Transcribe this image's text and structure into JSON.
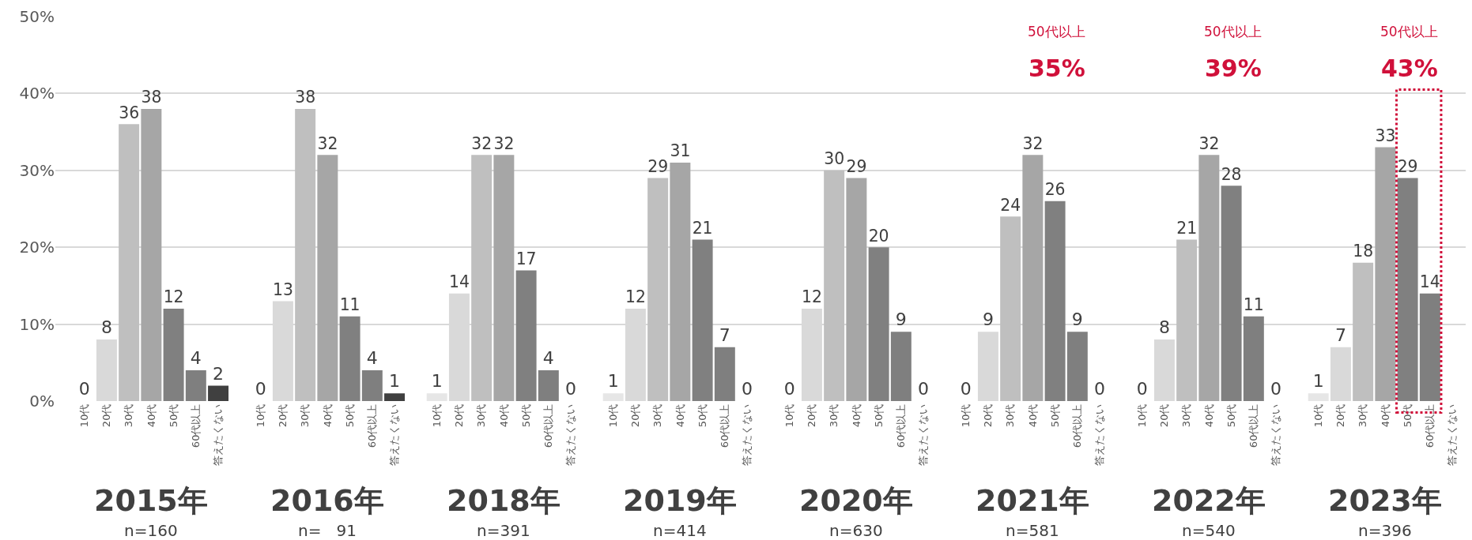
{
  "chart_data": [
    {
      "type": "bar",
      "title": "2015年",
      "subtitle": "n=160",
      "categories": [
        "10代",
        "20代",
        "30代",
        "40代",
        "50代",
        "60代以上",
        "答えたくない"
      ],
      "values": [
        0,
        8,
        36,
        38,
        12,
        4,
        2
      ],
      "colors": [
        "#e6e6e6",
        "#d9d9d9",
        "#bfbfbf",
        "#a6a6a6",
        "#808080",
        "#7f7f7f",
        "#404040"
      ],
      "data_labels": true,
      "ylim": [
        0,
        50
      ],
      "yticks": [
        {
          "value": 0,
          "label": "0%"
        },
        {
          "value": 10,
          "label": "10%"
        },
        {
          "value": 20,
          "label": "20%"
        },
        {
          "value": 30,
          "label": "30%"
        },
        {
          "value": 40,
          "label": "40%"
        },
        {
          "value": 50,
          "label": "50%"
        }
      ],
      "grid": "y"
    },
    {
      "type": "bar",
      "title": "2016年",
      "subtitle": "n=   91",
      "categories": [
        "10代",
        "20代",
        "30代",
        "40代",
        "50代",
        "60代以上",
        "答えたくない"
      ],
      "values": [
        0,
        13,
        38,
        32,
        11,
        4,
        1
      ],
      "colors": [
        "#e6e6e6",
        "#d9d9d9",
        "#bfbfbf",
        "#a6a6a6",
        "#808080",
        "#7f7f7f",
        "#404040"
      ],
      "data_labels": true,
      "ylim": [
        0,
        50
      ],
      "yticks": [
        0,
        10,
        20,
        30,
        40,
        50
      ],
      "grid": "y",
      "tick_labels": "x"
    },
    {
      "type": "bar",
      "title": "2018年",
      "subtitle": "n=391",
      "categories": [
        "10代",
        "20代",
        "30代",
        "40代",
        "50代",
        "60代以上",
        "答えたくない"
      ],
      "values": [
        1,
        14,
        32,
        32,
        17,
        4,
        0
      ],
      "colors": [
        "#e6e6e6",
        "#d9d9d9",
        "#bfbfbf",
        "#a6a6a6",
        "#808080",
        "#7f7f7f",
        "#404040"
      ],
      "data_labels": true,
      "ylim": [
        0,
        50
      ],
      "yticks": [
        0,
        10,
        20,
        30,
        40,
        50
      ],
      "grid": "y",
      "tick_labels": "x"
    },
    {
      "type": "bar",
      "title": "2019年",
      "subtitle": "n=414",
      "categories": [
        "10代",
        "20代",
        "30代",
        "40代",
        "50代",
        "60代以上",
        "答えたくない"
      ],
      "values": [
        1,
        12,
        29,
        31,
        21,
        7,
        0
      ],
      "colors": [
        "#e6e6e6",
        "#d9d9d9",
        "#bfbfbf",
        "#a6a6a6",
        "#808080",
        "#7f7f7f",
        "#404040"
      ],
      "data_labels": true,
      "ylim": [
        0,
        50
      ],
      "yticks": [
        0,
        10,
        20,
        30,
        40,
        50
      ],
      "grid": "y",
      "tick_labels": "x"
    },
    {
      "type": "bar",
      "title": "2020年",
      "subtitle": "n=630",
      "categories": [
        "10代",
        "20代",
        "30代",
        "40代",
        "50代",
        "60代以上",
        "答えたくない"
      ],
      "values": [
        0,
        12,
        30,
        29,
        20,
        9,
        0
      ],
      "colors": [
        "#e6e6e6",
        "#d9d9d9",
        "#bfbfbf",
        "#a6a6a6",
        "#808080",
        "#7f7f7f",
        "#404040"
      ],
      "data_labels": true,
      "ylim": [
        0,
        50
      ],
      "yticks": [
        0,
        10,
        20,
        30,
        40,
        50
      ],
      "grid": "y",
      "tick_labels": "x"
    },
    {
      "type": "bar",
      "title": "2021年",
      "subtitle": "n=581",
      "categories": [
        "10代",
        "20代",
        "30代",
        "40代",
        "50代",
        "60代以上",
        "答えたくない"
      ],
      "values": [
        0,
        9,
        24,
        32,
        26,
        9,
        0
      ],
      "colors": [
        "#e6e6e6",
        "#d9d9d9",
        "#bfbfbf",
        "#a6a6a6",
        "#808080",
        "#7f7f7f",
        "#404040"
      ],
      "data_labels": true,
      "ylim": [
        0,
        50
      ],
      "yticks": [
        0,
        10,
        20,
        30,
        40,
        50
      ],
      "grid": "y",
      "tick_labels": "x",
      "annotations": [
        "50代以上",
        "35%"
      ]
    },
    {
      "type": "bar",
      "title": "2022年",
      "subtitle": "n=540",
      "categories": [
        "10代",
        "20代",
        "30代",
        "40代",
        "50代",
        "60代以上",
        "答えたくない"
      ],
      "values": [
        0,
        8,
        21,
        32,
        28,
        11,
        0
      ],
      "colors": [
        "#e6e6e6",
        "#d9d9d9",
        "#bfbfbf",
        "#a6a6a6",
        "#808080",
        "#7f7f7f",
        "#404040"
      ],
      "data_labels": true,
      "ylim": [
        0,
        50
      ],
      "yticks": [
        0,
        10,
        20,
        30,
        40,
        50
      ],
      "grid": "y",
      "tick_labels": "x",
      "annotations": [
        "50代以上",
        "39%"
      ]
    },
    {
      "type": "bar",
      "title": "2023年",
      "subtitle": "n=396",
      "categories": [
        "10代",
        "20代",
        "30代",
        "40代",
        "50代",
        "60代以上",
        "答えたくない"
      ],
      "values": [
        1,
        7,
        18,
        33,
        29,
        14,
        null
      ],
      "colors": [
        "#e6e6e6",
        "#d9d9d9",
        "#bfbfbf",
        "#a6a6a6",
        "#808080",
        "#7f7f7f",
        "#404040"
      ],
      "data_labels": true,
      "ylim": [
        0,
        50
      ],
      "yticks": [
        0,
        10,
        20,
        30,
        40,
        50
      ],
      "grid": "y",
      "tick_labels": "x",
      "annotations": [
        "50代以上",
        "43%"
      ]
    }
  ]
}
